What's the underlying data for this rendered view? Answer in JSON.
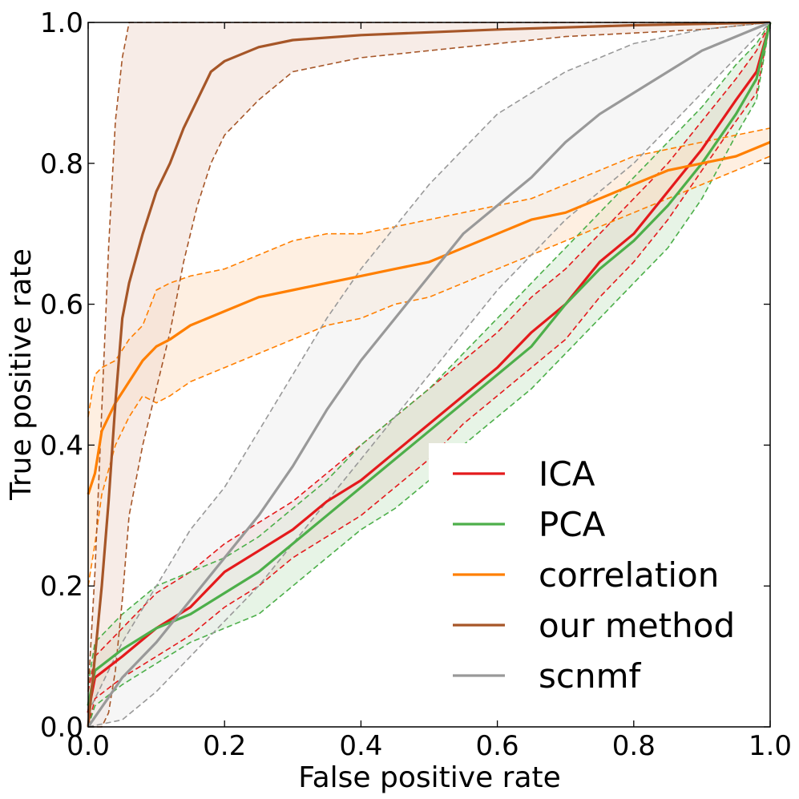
{
  "chart_data": {
    "type": "line",
    "title": "",
    "xlabel": "False positive rate",
    "ylabel": "True positive rate",
    "xlim": [
      0,
      1
    ],
    "ylim": [
      0,
      1
    ],
    "xticks": [
      "0.0",
      "0.2",
      "0.4",
      "0.6",
      "0.8",
      "1.0"
    ],
    "yticks": [
      "0.0",
      "0.2",
      "0.4",
      "0.6",
      "0.8",
      "1.0"
    ],
    "grid": false,
    "legend_position": "bottom-right",
    "series": [
      {
        "name": "ICA",
        "color": "#e41a1c",
        "band_fill": "#f2c8c8",
        "x": [
          0,
          0.01,
          0.05,
          0.1,
          0.15,
          0.2,
          0.25,
          0.3,
          0.35,
          0.4,
          0.45,
          0.5,
          0.55,
          0.6,
          0.65,
          0.7,
          0.75,
          0.8,
          0.85,
          0.9,
          0.95,
          0.98,
          1.0
        ],
        "y": [
          0.02,
          0.07,
          0.1,
          0.14,
          0.17,
          0.22,
          0.25,
          0.28,
          0.32,
          0.35,
          0.39,
          0.43,
          0.47,
          0.51,
          0.56,
          0.6,
          0.66,
          0.7,
          0.76,
          0.82,
          0.89,
          0.93,
          1.0
        ],
        "lower": [
          0.0,
          0.04,
          0.07,
          0.1,
          0.13,
          0.17,
          0.2,
          0.24,
          0.27,
          0.3,
          0.34,
          0.38,
          0.43,
          0.47,
          0.51,
          0.55,
          0.61,
          0.66,
          0.72,
          0.79,
          0.86,
          0.9,
          1.0
        ],
        "upper": [
          0.05,
          0.1,
          0.14,
          0.19,
          0.22,
          0.26,
          0.29,
          0.32,
          0.36,
          0.4,
          0.44,
          0.48,
          0.52,
          0.56,
          0.61,
          0.65,
          0.7,
          0.75,
          0.8,
          0.86,
          0.92,
          0.96,
          1.0
        ]
      },
      {
        "name": "PCA",
        "color": "#4daf4a",
        "band_fill": "#d4ebd2",
        "x": [
          0,
          0.01,
          0.05,
          0.1,
          0.15,
          0.2,
          0.25,
          0.3,
          0.35,
          0.4,
          0.45,
          0.5,
          0.55,
          0.6,
          0.65,
          0.7,
          0.75,
          0.8,
          0.85,
          0.9,
          0.95,
          0.98,
          1.0
        ],
        "y": [
          0.03,
          0.08,
          0.11,
          0.14,
          0.16,
          0.19,
          0.22,
          0.26,
          0.3,
          0.34,
          0.38,
          0.42,
          0.46,
          0.5,
          0.54,
          0.6,
          0.65,
          0.69,
          0.74,
          0.8,
          0.87,
          0.92,
          1.0
        ],
        "lower": [
          0.0,
          0.03,
          0.06,
          0.09,
          0.12,
          0.14,
          0.16,
          0.2,
          0.24,
          0.28,
          0.31,
          0.35,
          0.4,
          0.44,
          0.48,
          0.53,
          0.58,
          0.63,
          0.68,
          0.75,
          0.84,
          0.89,
          1.0
        ],
        "upper": [
          0.06,
          0.12,
          0.16,
          0.2,
          0.22,
          0.24,
          0.27,
          0.31,
          0.35,
          0.4,
          0.44,
          0.48,
          0.53,
          0.58,
          0.63,
          0.68,
          0.73,
          0.78,
          0.83,
          0.88,
          0.94,
          0.97,
          1.0
        ]
      },
      {
        "name": "correlation",
        "color": "#ff7f00",
        "band_fill": "#fde2c8",
        "x": [
          0,
          0.01,
          0.02,
          0.04,
          0.06,
          0.08,
          0.1,
          0.12,
          0.15,
          0.2,
          0.25,
          0.3,
          0.35,
          0.4,
          0.45,
          0.5,
          0.55,
          0.6,
          0.65,
          0.7,
          0.75,
          0.8,
          0.85,
          0.9,
          0.95,
          1.0
        ],
        "y": [
          0.33,
          0.36,
          0.42,
          0.46,
          0.49,
          0.52,
          0.54,
          0.55,
          0.57,
          0.59,
          0.61,
          0.62,
          0.63,
          0.64,
          0.65,
          0.66,
          0.68,
          0.7,
          0.72,
          0.73,
          0.75,
          0.77,
          0.79,
          0.8,
          0.81,
          0.83
        ],
        "lower": [
          0.2,
          0.26,
          0.33,
          0.4,
          0.44,
          0.47,
          0.46,
          0.47,
          0.49,
          0.51,
          0.53,
          0.55,
          0.57,
          0.58,
          0.6,
          0.61,
          0.63,
          0.65,
          0.67,
          0.69,
          0.71,
          0.73,
          0.75,
          0.77,
          0.79,
          0.81
        ],
        "upper": [
          0.44,
          0.5,
          0.51,
          0.52,
          0.55,
          0.57,
          0.62,
          0.63,
          0.64,
          0.65,
          0.67,
          0.69,
          0.7,
          0.7,
          0.71,
          0.72,
          0.73,
          0.74,
          0.75,
          0.77,
          0.79,
          0.81,
          0.82,
          0.83,
          0.84,
          0.85
        ]
      },
      {
        "name": "our method",
        "color": "#a65628",
        "band_fill": "#f0dcd3",
        "x": [
          0,
          0.01,
          0.02,
          0.03,
          0.04,
          0.05,
          0.06,
          0.08,
          0.1,
          0.12,
          0.14,
          0.16,
          0.18,
          0.2,
          0.25,
          0.3,
          0.4,
          0.5,
          0.6,
          0.7,
          0.8,
          0.9,
          1.0
        ],
        "y": [
          0.0,
          0.1,
          0.2,
          0.32,
          0.46,
          0.58,
          0.63,
          0.7,
          0.76,
          0.8,
          0.85,
          0.89,
          0.93,
          0.945,
          0.965,
          0.975,
          0.982,
          0.986,
          0.99,
          0.993,
          0.996,
          0.998,
          1.0
        ],
        "lower": [
          0.0,
          0.0,
          0.0,
          0.02,
          0.08,
          0.18,
          0.3,
          0.4,
          0.48,
          0.56,
          0.66,
          0.74,
          0.8,
          0.84,
          0.89,
          0.93,
          0.95,
          0.96,
          0.97,
          0.98,
          0.985,
          0.99,
          1.0
        ],
        "upper": [
          0.05,
          0.22,
          0.45,
          0.68,
          0.86,
          0.95,
          1.0,
          1.0,
          1.0,
          1.0,
          1.0,
          1.0,
          1.0,
          1.0,
          1.0,
          1.0,
          1.0,
          1.0,
          1.0,
          1.0,
          1.0,
          1.0,
          1.0
        ]
      },
      {
        "name": "scnmf",
        "color": "#999999",
        "band_fill": "#eeeeee",
        "x": [
          0,
          0.05,
          0.1,
          0.15,
          0.2,
          0.25,
          0.3,
          0.35,
          0.4,
          0.45,
          0.5,
          0.55,
          0.6,
          0.65,
          0.7,
          0.75,
          0.8,
          0.85,
          0.9,
          0.95,
          1.0
        ],
        "y": [
          0.0,
          0.07,
          0.12,
          0.18,
          0.24,
          0.3,
          0.37,
          0.45,
          0.52,
          0.58,
          0.64,
          0.7,
          0.74,
          0.78,
          0.83,
          0.87,
          0.9,
          0.93,
          0.96,
          0.98,
          1.0
        ],
        "lower": [
          0.0,
          0.01,
          0.05,
          0.1,
          0.15,
          0.2,
          0.26,
          0.32,
          0.38,
          0.44,
          0.5,
          0.56,
          0.62,
          0.67,
          0.72,
          0.76,
          0.8,
          0.85,
          0.9,
          0.95,
          1.0
        ],
        "upper": [
          0.02,
          0.12,
          0.2,
          0.28,
          0.34,
          0.42,
          0.5,
          0.58,
          0.65,
          0.71,
          0.77,
          0.82,
          0.87,
          0.9,
          0.93,
          0.95,
          0.97,
          0.98,
          0.99,
          0.995,
          1.0
        ]
      }
    ]
  }
}
